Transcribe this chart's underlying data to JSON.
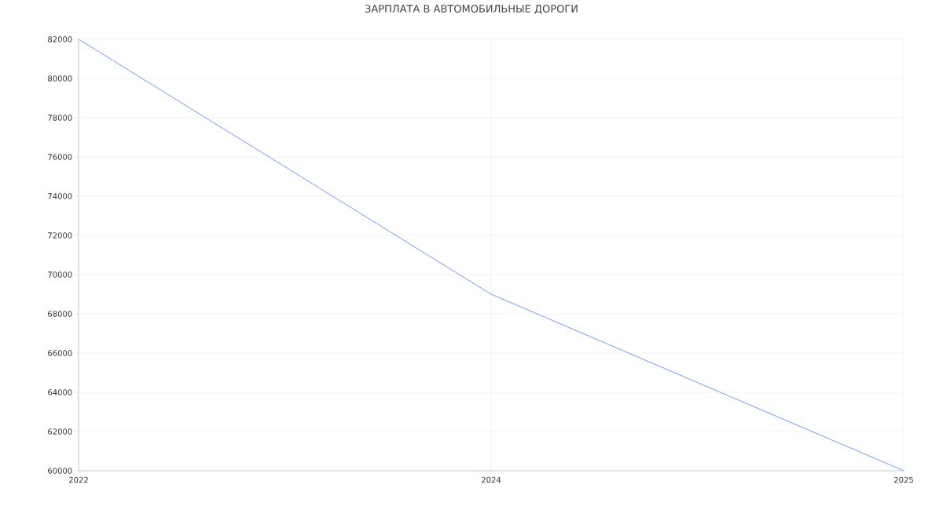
{
  "chart_data": {
    "type": "line",
    "title": "ЗАРПЛАТА В АВТОМОБИЛЬНЫЕ ДОРОГИ",
    "categories": [
      "2022",
      "2024",
      "2025"
    ],
    "series": [
      {
        "color": "#6f9bf5",
        "values": [
          82000,
          69000,
          60000
        ]
      }
    ],
    "ylim": [
      60000,
      82000
    ],
    "yticks": [
      60000,
      62000,
      64000,
      66000,
      68000,
      70000,
      72000,
      74000,
      76000,
      78000,
      80000,
      82000
    ],
    "grid": true,
    "marker": "none",
    "line_style": "solid"
  }
}
